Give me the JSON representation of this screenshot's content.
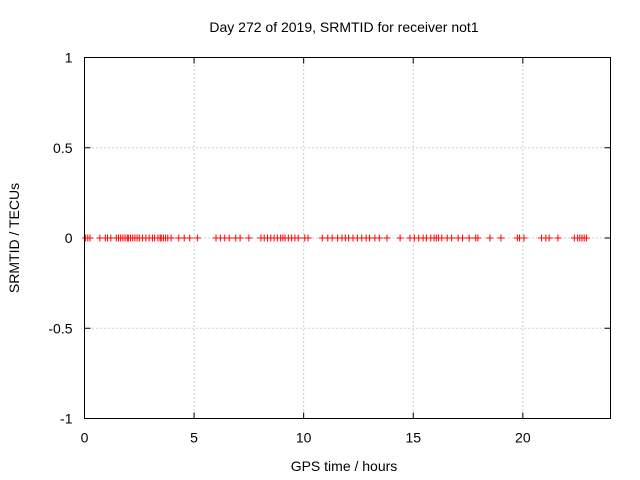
{
  "chart_data": {
    "type": "scatter",
    "title": "Day 272 of 2019, SRMTID for receiver not1",
    "xlabel": "GPS time / hours",
    "ylabel": "SRMTID / TECUs",
    "xlim": [
      0,
      24
    ],
    "ylim": [
      -1,
      1
    ],
    "x_ticks": [
      0,
      5,
      10,
      15,
      20
    ],
    "x_tick_labels": [
      "0",
      "5",
      "10",
      "15",
      "20"
    ],
    "y_ticks": [
      -1,
      -0.5,
      0,
      0.5,
      1
    ],
    "y_tick_labels": [
      "-1",
      "-0.5",
      "0",
      "0.5",
      "1"
    ],
    "grid": true,
    "marker": "+",
    "series": [
      {
        "name": "SRMTID",
        "color": "#ff0000",
        "x": [
          0.05,
          0.15,
          0.25,
          0.7,
          0.95,
          1.05,
          1.2,
          1.45,
          1.55,
          1.65,
          1.75,
          1.85,
          1.95,
          2.0,
          2.1,
          2.2,
          2.3,
          2.4,
          2.5,
          2.65,
          2.8,
          2.95,
          3.1,
          3.2,
          3.35,
          3.45,
          3.5,
          3.6,
          3.7,
          3.8,
          3.95,
          4.3,
          4.55,
          4.8,
          5.15,
          6.0,
          6.2,
          6.4,
          6.6,
          6.9,
          7.1,
          7.5,
          8.05,
          8.2,
          8.35,
          8.5,
          8.65,
          8.8,
          8.95,
          9.05,
          9.15,
          9.3,
          9.45,
          9.6,
          9.75,
          10.05,
          10.2,
          10.85,
          11.1,
          11.3,
          11.55,
          11.75,
          11.9,
          12.05,
          12.25,
          12.45,
          12.65,
          12.85,
          13.0,
          13.25,
          13.45,
          13.8,
          14.4,
          14.85,
          15.05,
          15.25,
          15.45,
          15.6,
          15.8,
          15.95,
          16.05,
          16.15,
          16.3,
          16.55,
          16.75,
          17.05,
          17.25,
          17.55,
          17.85,
          17.95,
          18.5,
          19.0,
          19.75,
          19.85,
          20.05,
          20.85,
          21.05,
          21.2,
          21.6,
          22.35,
          22.5,
          22.6,
          22.7,
          22.8,
          22.9
        ],
        "y": [
          0,
          0,
          0,
          0,
          0,
          0,
          0,
          0,
          0,
          0,
          0,
          0,
          0,
          0,
          0,
          0,
          0,
          0,
          0,
          0,
          0,
          0,
          0,
          0,
          0,
          0,
          0,
          0,
          0,
          0,
          0,
          0,
          0,
          0,
          0,
          0,
          0,
          0,
          0,
          0,
          0,
          0,
          0,
          0,
          0,
          0,
          0,
          0,
          0,
          0,
          0,
          0,
          0,
          0,
          0,
          0,
          0,
          0,
          0,
          0,
          0,
          0,
          0,
          0,
          0,
          0,
          0,
          0,
          0,
          0,
          0,
          0,
          0,
          0,
          0,
          0,
          0,
          0,
          0,
          0,
          0,
          0,
          0,
          0,
          0,
          0,
          0,
          0,
          0,
          0,
          0,
          0,
          0,
          0,
          0,
          0,
          0,
          0,
          0,
          0,
          0,
          0,
          0,
          0,
          0
        ]
      }
    ]
  }
}
